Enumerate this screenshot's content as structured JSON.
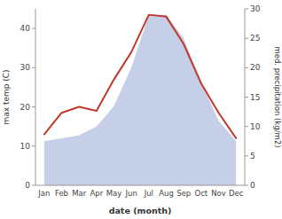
{
  "chart_data": {
    "type": "line",
    "x_label": "date (month)",
    "y_label": "max temp (C)",
    "y2_label": "med. precipitation (kg/m2)",
    "categories": [
      "Jan",
      "Feb",
      "Mar",
      "Apr",
      "May",
      "Jun",
      "Jul",
      "Aug",
      "Sep",
      "Oct",
      "Nov",
      "Dec"
    ],
    "series": [
      {
        "type": "area",
        "axis": "y2",
        "color": "#c5cfe8",
        "values": [
          7.5,
          8,
          8.5,
          10,
          13.5,
          20,
          29,
          29,
          25,
          17.5,
          11,
          7.5
        ]
      },
      {
        "type": "line",
        "color": "#c0392b",
        "values": [
          13,
          18.5,
          20,
          19,
          27,
          34,
          43.5,
          43,
          36,
          26,
          18.5,
          12
        ]
      }
    ],
    "ylim": [
      0,
      45
    ],
    "yticks": [
      0,
      10,
      20,
      30,
      40
    ],
    "y2lim": [
      0,
      30
    ],
    "y2ticks": [
      0,
      5,
      10,
      15,
      20,
      25,
      30
    ],
    "grid": false
  }
}
